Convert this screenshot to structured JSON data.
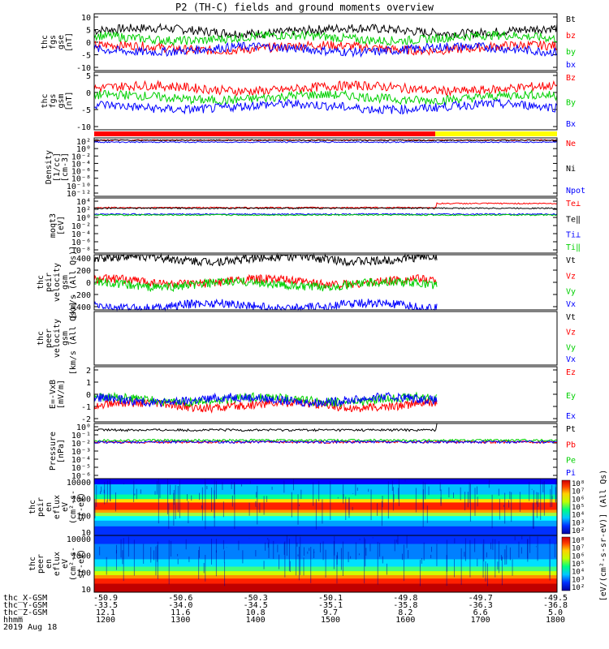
{
  "title": "P2 (TH-C) fields and ground moments overview",
  "colors": {
    "black": "#000000",
    "red": "#ff0000",
    "green": "#00d000",
    "blue": "#0000ff",
    "yellow": "#ffff00"
  },
  "chart_data": [
    {
      "type": "line",
      "id": "fgs",
      "ylabel": [
        "thc",
        "fgs",
        "gse",
        "[nT]"
      ],
      "ylim": [
        -10,
        10
      ],
      "yticks": [
        "10",
        "5",
        "0",
        "-5",
        "-10"
      ],
      "series": [
        {
          "name": "Bt",
          "color": "black",
          "level": 4
        },
        {
          "name": "bz",
          "color": "red",
          "level": -2
        },
        {
          "name": "by",
          "color": "green",
          "level": 1.5
        },
        {
          "name": "bx",
          "color": "blue",
          "level": -2.5
        }
      ]
    },
    {
      "type": "line",
      "id": "fgs_gsm",
      "ylabel": [
        "thc",
        "fgs",
        "gsm",
        "[nT]"
      ],
      "ylim": [
        -15,
        10
      ],
      "yticks": [
        "5",
        "0",
        "-5",
        "-10"
      ],
      "series": [
        {
          "name": "Bz",
          "color": "red",
          "level": 3
        },
        {
          "name": "By",
          "color": "green",
          "level": -1
        },
        {
          "name": "Bx",
          "color": "blue",
          "level": -5
        }
      ]
    },
    {
      "type": "line",
      "id": "density",
      "ylabel": [
        "Density",
        "[1/cc]",
        "[cm-3]"
      ],
      "ylim": [
        1e-12,
        100.0
      ],
      "scale": "log",
      "yticks": [
        "10²",
        "10⁰",
        "10⁻²",
        "10⁻⁴",
        "10⁻⁶",
        "10⁻⁸",
        "10⁻¹⁰",
        "10⁻¹²"
      ],
      "series": [
        {
          "name": "Ne",
          "color": "red"
        },
        {
          "name": "Ni",
          "color": "black"
        },
        {
          "name": "Npot",
          "color": "blue"
        }
      ]
    },
    {
      "type": "line",
      "id": "temp",
      "ylabel": [
        "moqt3",
        "[eV]"
      ],
      "ylim": [
        1e-08,
        10000.0
      ],
      "scale": "log",
      "yticks": [
        "10⁴",
        "10²",
        "10⁰",
        "10⁻²",
        "10⁻⁴",
        "10⁻⁶",
        "10⁻⁸"
      ],
      "series": [
        {
          "name": "Te⊥",
          "color": "red"
        },
        {
          "name": "Te‖",
          "color": "black"
        },
        {
          "name": "Ti⊥",
          "color": "blue"
        },
        {
          "name": "Ti‖",
          "color": "green"
        }
      ]
    },
    {
      "type": "line",
      "id": "peir_vel",
      "ylabel": [
        "thc",
        "peir",
        "velocity",
        "gsm",
        "[km/s (All Qs)]"
      ],
      "ylim": [
        -400,
        400
      ],
      "yticks": [
        "400",
        "200",
        "0",
        "-200",
        "-400"
      ],
      "series": [
        {
          "name": "Vt",
          "color": "black",
          "level": 340
        },
        {
          "name": "Vz",
          "color": "red",
          "level": 10
        },
        {
          "name": "Vy",
          "color": "green",
          "level": -30
        },
        {
          "name": "Vx",
          "color": "blue",
          "level": -340
        }
      ]
    },
    {
      "type": "line",
      "id": "peer_vel",
      "ylabel": [
        "thc",
        "peer",
        "velocity",
        "gsm",
        "[km/s (All Qs)]"
      ],
      "ylim": [
        -400,
        400
      ],
      "yticks": [],
      "series": [
        {
          "name": "Vt",
          "color": "black"
        },
        {
          "name": "Vz",
          "color": "red"
        },
        {
          "name": "Vy",
          "color": "green"
        },
        {
          "name": "Vx",
          "color": "blue"
        }
      ]
    },
    {
      "type": "line",
      "id": "efield",
      "ylabel": [
        "E=-VxB",
        "[mV/m]"
      ],
      "ylim": [
        -2,
        3
      ],
      "yticks": [
        "2",
        "1",
        "0",
        "-1",
        "-2"
      ],
      "series": [
        {
          "name": "Ez",
          "color": "red",
          "level": -0.5
        },
        {
          "name": "Ey",
          "color": "green",
          "level": 0
        },
        {
          "name": "Ex",
          "color": "blue",
          "level": 0
        }
      ]
    },
    {
      "type": "line",
      "id": "pressure",
      "ylabel": [
        "Pressure",
        "[nPa]"
      ],
      "ylim": [
        1e-06,
        1
      ],
      "scale": "log",
      "yticks": [
        "10⁰",
        "10⁻¹",
        "10⁻²",
        "10⁻³",
        "10⁻⁴",
        "10⁻⁵",
        "10⁻⁶"
      ],
      "series": [
        {
          "name": "Pt",
          "color": "black"
        },
        {
          "name": "Pb",
          "color": "red"
        },
        {
          "name": "Pe",
          "color": "green"
        },
        {
          "name": "Pi",
          "color": "blue"
        }
      ]
    },
    {
      "type": "heatmap",
      "id": "peir_spec",
      "ylabel": [
        "thc",
        "peir",
        "en",
        "eflux",
        "eV",
        "(cm²-s-",
        "sr-eV)"
      ],
      "ylim": [
        5,
        30000
      ],
      "scale": "log",
      "yticks": [
        "10000",
        "1000",
        "100",
        "10"
      ]
    },
    {
      "type": "heatmap",
      "id": "peer_spec",
      "ylabel": [
        "thc",
        "peer",
        "en",
        "eflux",
        "eV",
        "(cm²-s-",
        "sr-eV)"
      ],
      "ylim": [
        5,
        30000
      ],
      "scale": "log",
      "yticks": [
        "10000",
        "1000",
        "100",
        "10"
      ]
    }
  ],
  "colorbar": {
    "label": "[eV/(cm²-s-sr-eV)] (All Qs)",
    "ticks_top": [
      "10⁸",
      "10⁷",
      "10⁶",
      "10⁵",
      "10⁴",
      "10³",
      "10²"
    ],
    "ticks_bottom": [
      "10⁸",
      "10⁷",
      "10⁶",
      "10⁵",
      "10⁴",
      "10³",
      "10²"
    ]
  },
  "xaxis": {
    "rows": [
      {
        "label": "thc_X-GSM",
        "values": [
          "-50.9",
          "-50.6",
          "-50.3",
          "-50.1",
          "-49.8",
          "-49.7",
          "-49.5"
        ]
      },
      {
        "label": "thc_Y-GSM",
        "values": [
          "-33.5",
          "-34.0",
          "-34.5",
          "-35.1",
          "-35.8",
          "-36.3",
          "-36.8"
        ]
      },
      {
        "label": "thc_Z-GSM",
        "values": [
          "12.1",
          "11.6",
          "10.8",
          "9.7",
          "8.2",
          "6.6",
          "5.0"
        ]
      },
      {
        "label": "hhmm",
        "values": [
          "1200",
          "1300",
          "1400",
          "1500",
          "1600",
          "1700",
          "1800"
        ]
      }
    ],
    "date": "2019 Aug 18"
  }
}
